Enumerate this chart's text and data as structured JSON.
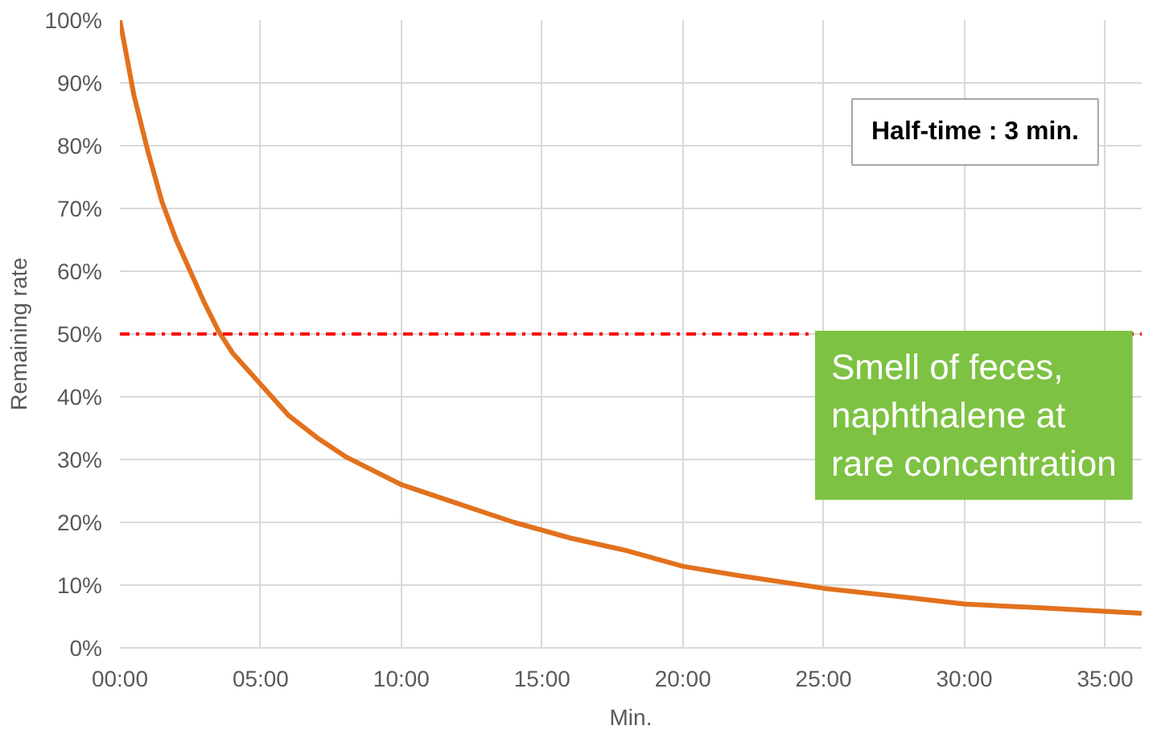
{
  "chart_data": {
    "type": "line",
    "xlabel": "Min.",
    "ylabel": "Remaining rate",
    "x": [
      0,
      0.5,
      1,
      1.5,
      2,
      2.5,
      3,
      3.5,
      4,
      5,
      6,
      7,
      8,
      10,
      12,
      14,
      16,
      18,
      20,
      22,
      25,
      28,
      30,
      33,
      36.3
    ],
    "series": [
      {
        "color": "#e2711d",
        "values": [
          100,
          88,
          79,
          71,
          65,
          60,
          55,
          50.5,
          47,
          42,
          37,
          33.5,
          30.5,
          26,
          23,
          20,
          17.5,
          15.5,
          13,
          11.5,
          9.5,
          8,
          7,
          6.3,
          5.5
        ]
      }
    ],
    "xlim": [
      0,
      36.3
    ],
    "ylim": [
      0,
      100
    ],
    "xticks": [
      {
        "value": 0,
        "label": "00:00"
      },
      {
        "value": 5,
        "label": "05:00"
      },
      {
        "value": 10,
        "label": "10:00"
      },
      {
        "value": 15,
        "label": "15:00"
      },
      {
        "value": 20,
        "label": "20:00"
      },
      {
        "value": 25,
        "label": "25:00"
      },
      {
        "value": 30,
        "label": "30:00"
      },
      {
        "value": 35,
        "label": "35:00"
      }
    ],
    "yticks": [
      {
        "value": 0,
        "label": "0%"
      },
      {
        "value": 10,
        "label": "10%"
      },
      {
        "value": 20,
        "label": "20%"
      },
      {
        "value": 30,
        "label": "30%"
      },
      {
        "value": 40,
        "label": "40%"
      },
      {
        "value": 50,
        "label": "50%"
      },
      {
        "value": 60,
        "label": "60%"
      },
      {
        "value": 70,
        "label": "70%"
      },
      {
        "value": 80,
        "label": "80%"
      },
      {
        "value": 90,
        "label": "90%"
      },
      {
        "value": 100,
        "label": "100%"
      }
    ],
    "ref_lines": [
      {
        "axis": "y",
        "value": 50,
        "color": "#ff0000",
        "line_style": "dashdot"
      }
    ],
    "annotations": [
      "Half-time : 3 min.",
      "Smell of feces,\nnaphthalene at\nrare concentration"
    ],
    "grid": true,
    "marker": "none",
    "line_style": "solid"
  }
}
